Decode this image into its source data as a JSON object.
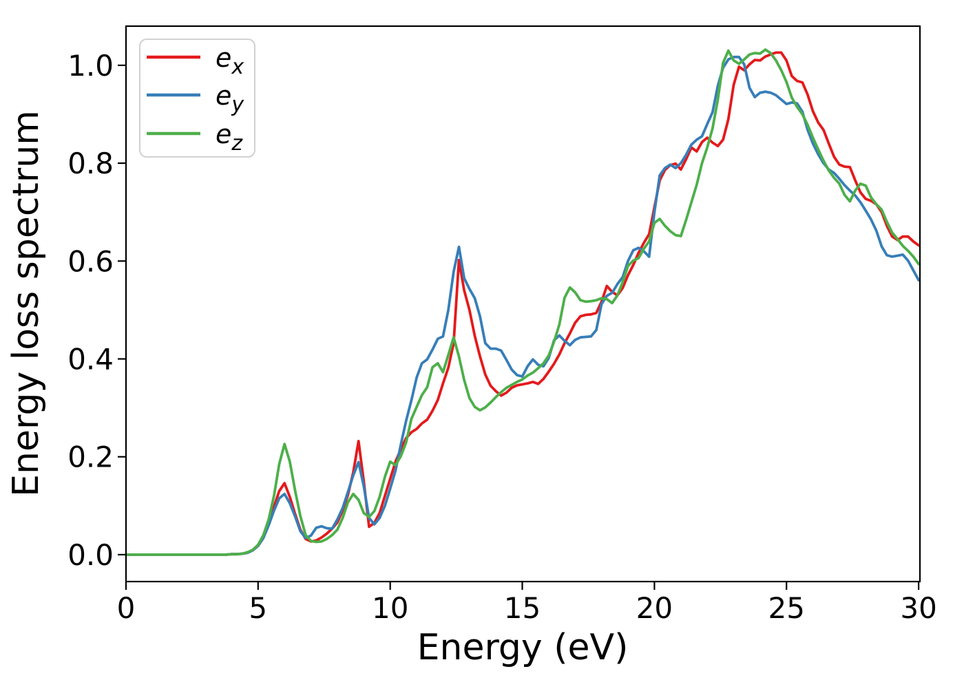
{
  "figure": {
    "background": "#ffffff"
  },
  "axes": {
    "xlabel": "Energy (eV)",
    "ylabel": "Energy loss spectrum",
    "xlim": [
      0,
      30.05
    ],
    "ylim": [
      -0.055,
      1.08
    ],
    "x_ticks": [
      0,
      5,
      10,
      15,
      20,
      25,
      30
    ],
    "x_tick_labels": [
      "0",
      "5",
      "10",
      "15",
      "20",
      "25",
      "30"
    ],
    "y_ticks": [
      0.0,
      0.2,
      0.4,
      0.6,
      0.8,
      1.0
    ],
    "y_tick_labels": [
      "0.0",
      "0.2",
      "0.4",
      "0.6",
      "0.8",
      "1.0"
    ]
  },
  "legend": {
    "items": [
      {
        "base": "e",
        "sub": "x",
        "color": "#e41a1c"
      },
      {
        "base": "e",
        "sub": "y",
        "color": "#377eb8"
      },
      {
        "base": "e",
        "sub": "z",
        "color": "#4daf4a"
      }
    ]
  },
  "chart_data": {
    "type": "line",
    "title": "",
    "xlabel": "Energy (eV)",
    "ylabel": "Energy loss spectrum",
    "xlim": [
      0,
      30.05
    ],
    "ylim": [
      -0.055,
      1.08
    ],
    "grid": false,
    "legend_position": "upper-left",
    "x": [
      0,
      0.2,
      0.4,
      0.6,
      0.8,
      1,
      1.2,
      1.4,
      1.6,
      1.8,
      2,
      2.2,
      2.4,
      2.6,
      2.8,
      3,
      3.2,
      3.4,
      3.6,
      3.8,
      4,
      4.2,
      4.4,
      4.6,
      4.8,
      5,
      5.2,
      5.4,
      5.6,
      5.8,
      6,
      6.2,
      6.4,
      6.6,
      6.8,
      7,
      7.2,
      7.4,
      7.6,
      7.8,
      8,
      8.2,
      8.4,
      8.6,
      8.8,
      9,
      9.2,
      9.4,
      9.6,
      9.8,
      10,
      10.2,
      10.4,
      10.6,
      10.8,
      11,
      11.2,
      11.4,
      11.6,
      11.8,
      12,
      12.2,
      12.4,
      12.6,
      12.8,
      13,
      13.2,
      13.4,
      13.6,
      13.8,
      14,
      14.2,
      14.4,
      14.6,
      14.8,
      15,
      15.2,
      15.4,
      15.6,
      15.8,
      16,
      16.2,
      16.4,
      16.6,
      16.8,
      17,
      17.2,
      17.4,
      17.6,
      17.8,
      18,
      18.2,
      18.4,
      18.6,
      18.8,
      19,
      19.2,
      19.4,
      19.6,
      19.8,
      20,
      20.2,
      20.4,
      20.6,
      20.8,
      21,
      21.2,
      21.4,
      21.6,
      21.8,
      22,
      22.2,
      22.4,
      22.6,
      22.8,
      23,
      23.2,
      23.4,
      23.6,
      23.8,
      24,
      24.2,
      24.4,
      24.6,
      24.8,
      25,
      25.2,
      25.4,
      25.6,
      25.8,
      26,
      26.2,
      26.4,
      26.6,
      26.8,
      27,
      27.2,
      27.4,
      27.6,
      27.8,
      28,
      28.2,
      28.4,
      28.6,
      28.8,
      29,
      29.2,
      29.4,
      29.6,
      29.8,
      30
    ],
    "series": [
      {
        "id": "ex",
        "name": "e_x",
        "color": "#e41a1c",
        "values": [
          0,
          0,
          0,
          0,
          0,
          0,
          0,
          0,
          0,
          0,
          0,
          0,
          0,
          0,
          0,
          0,
          0,
          0,
          0,
          0,
          0.001,
          0.001,
          0.002,
          0.004,
          0.009,
          0.018,
          0.035,
          0.062,
          0.098,
          0.13,
          0.146,
          0.118,
          0.083,
          0.051,
          0.032,
          0.027,
          0.029,
          0.035,
          0.043,
          0.053,
          0.066,
          0.09,
          0.122,
          0.168,
          0.232,
          0.15,
          0.057,
          0.065,
          0.085,
          0.12,
          0.155,
          0.19,
          0.215,
          0.238,
          0.25,
          0.257,
          0.268,
          0.276,
          0.294,
          0.316,
          0.35,
          0.382,
          0.432,
          0.602,
          0.54,
          0.5,
          0.447,
          0.405,
          0.368,
          0.345,
          0.334,
          0.325,
          0.331,
          0.341,
          0.346,
          0.348,
          0.35,
          0.353,
          0.349,
          0.359,
          0.374,
          0.39,
          0.409,
          0.432,
          0.452,
          0.474,
          0.487,
          0.49,
          0.491,
          0.494,
          0.517,
          0.549,
          0.537,
          0.53,
          0.545,
          0.571,
          0.592,
          0.617,
          0.637,
          0.655,
          0.71,
          0.765,
          0.786,
          0.796,
          0.799,
          0.787,
          0.808,
          0.832,
          0.824,
          0.843,
          0.852,
          0.842,
          0.835,
          0.848,
          0.89,
          0.96,
          0.997,
          0.99,
          1.002,
          1.011,
          1.01,
          1.018,
          1.022,
          1.026,
          1.026,
          1.01,
          0.978,
          0.968,
          0.965,
          0.94,
          0.906,
          0.883,
          0.868,
          0.84,
          0.813,
          0.797,
          0.793,
          0.792,
          0.765,
          0.74,
          0.727,
          0.723,
          0.716,
          0.7,
          0.672,
          0.65,
          0.643,
          0.65,
          0.65,
          0.64,
          0.632
        ]
      },
      {
        "id": "ey",
        "name": "e_y",
        "color": "#377eb8",
        "values": [
          0,
          0,
          0,
          0,
          0,
          0,
          0,
          0,
          0,
          0,
          0,
          0,
          0,
          0,
          0,
          0,
          0,
          0,
          0,
          0,
          0.001,
          0.001,
          0.002,
          0.004,
          0.009,
          0.018,
          0.034,
          0.06,
          0.09,
          0.115,
          0.124,
          0.105,
          0.078,
          0.048,
          0.034,
          0.039,
          0.055,
          0.058,
          0.054,
          0.053,
          0.072,
          0.095,
          0.128,
          0.162,
          0.189,
          0.14,
          0.075,
          0.062,
          0.075,
          0.1,
          0.135,
          0.172,
          0.224,
          0.273,
          0.315,
          0.362,
          0.391,
          0.399,
          0.419,
          0.441,
          0.446,
          0.5,
          0.578,
          0.629,
          0.565,
          0.543,
          0.524,
          0.487,
          0.432,
          0.421,
          0.421,
          0.417,
          0.398,
          0.378,
          0.367,
          0.364,
          0.385,
          0.399,
          0.388,
          0.385,
          0.402,
          0.438,
          0.448,
          0.437,
          0.428,
          0.439,
          0.444,
          0.445,
          0.446,
          0.459,
          0.512,
          0.529,
          0.535,
          0.553,
          0.567,
          0.6,
          0.622,
          0.627,
          0.62,
          0.609,
          0.7,
          0.775,
          0.79,
          0.797,
          0.79,
          0.8,
          0.817,
          0.838,
          0.848,
          0.855,
          0.88,
          0.904,
          0.958,
          0.995,
          1.012,
          1.017,
          1.017,
          1.002,
          0.954,
          0.935,
          0.944,
          0.946,
          0.944,
          0.939,
          0.93,
          0.921,
          0.924,
          0.922,
          0.905,
          0.868,
          0.84,
          0.818,
          0.8,
          0.787,
          0.78,
          0.768,
          0.755,
          0.744,
          0.734,
          0.72,
          0.703,
          0.685,
          0.662,
          0.63,
          0.612,
          0.609,
          0.611,
          0.613,
          0.601,
          0.581,
          0.561
        ]
      },
      {
        "id": "ez",
        "name": "e_z",
        "color": "#4daf4a",
        "values": [
          0,
          0,
          0,
          0,
          0,
          0,
          0,
          0,
          0,
          0,
          0,
          0,
          0,
          0,
          0,
          0,
          0,
          0,
          0,
          0,
          0.001,
          0.001,
          0.002,
          0.005,
          0.01,
          0.02,
          0.04,
          0.072,
          0.12,
          0.185,
          0.226,
          0.19,
          0.131,
          0.079,
          0.04,
          0.028,
          0.026,
          0.027,
          0.032,
          0.04,
          0.051,
          0.075,
          0.107,
          0.124,
          0.112,
          0.085,
          0.077,
          0.089,
          0.118,
          0.159,
          0.19,
          0.183,
          0.201,
          0.229,
          0.277,
          0.302,
          0.326,
          0.342,
          0.383,
          0.391,
          0.373,
          0.408,
          0.444,
          0.405,
          0.357,
          0.32,
          0.302,
          0.295,
          0.301,
          0.311,
          0.322,
          0.332,
          0.341,
          0.347,
          0.353,
          0.358,
          0.366,
          0.372,
          0.381,
          0.391,
          0.407,
          0.435,
          0.47,
          0.525,
          0.546,
          0.536,
          0.52,
          0.517,
          0.518,
          0.52,
          0.524,
          0.522,
          0.514,
          0.53,
          0.557,
          0.59,
          0.601,
          0.606,
          0.625,
          0.64,
          0.678,
          0.686,
          0.672,
          0.661,
          0.653,
          0.651,
          0.684,
          0.72,
          0.756,
          0.8,
          0.832,
          0.871,
          0.93,
          1.005,
          1.03,
          1.01,
          1.003,
          1.012,
          1.022,
          1.025,
          1.024,
          1.032,
          1.025,
          1.01,
          0.99,
          0.966,
          0.934,
          0.915,
          0.9,
          0.878,
          0.852,
          0.828,
          0.805,
          0.785,
          0.77,
          0.758,
          0.735,
          0.722,
          0.744,
          0.758,
          0.754,
          0.73,
          0.716,
          0.705,
          0.68,
          0.658,
          0.645,
          0.631,
          0.621,
          0.609,
          0.594
        ]
      }
    ]
  }
}
